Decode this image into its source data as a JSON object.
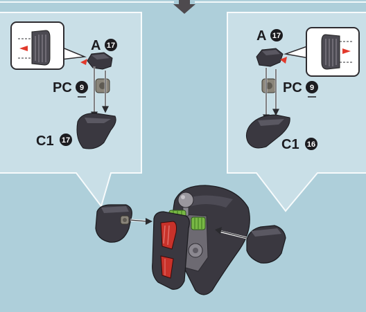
{
  "colors": {
    "background": "#a9ccd8",
    "callout_fill": "#c7dde5",
    "callout_stroke": "#f7fbfc",
    "part_dark": "#3a3840",
    "part_mid": "#55535c",
    "poly_cap": "#8a857a",
    "clear_red": "#c8322a",
    "joint_green": "#79b845",
    "mark_red": "#e23a2c",
    "label": "#1c1c20"
  },
  "left_panel": {
    "labels": {
      "part_a": {
        "letter": "A",
        "number": "17"
      },
      "part_pc": {
        "letter": "PC",
        "number": "9"
      },
      "part_c1": {
        "letter": "C1",
        "number": "17"
      }
    }
  },
  "right_panel": {
    "labels": {
      "part_a": {
        "letter": "A",
        "number": "17"
      },
      "part_pc": {
        "letter": "PC",
        "number": "9"
      },
      "part_c1": {
        "letter": "C1",
        "number": "16"
      }
    }
  },
  "icons": {
    "top_arrow": "down-arrow-icon",
    "zoom": "zoom-magnifier-icon"
  }
}
